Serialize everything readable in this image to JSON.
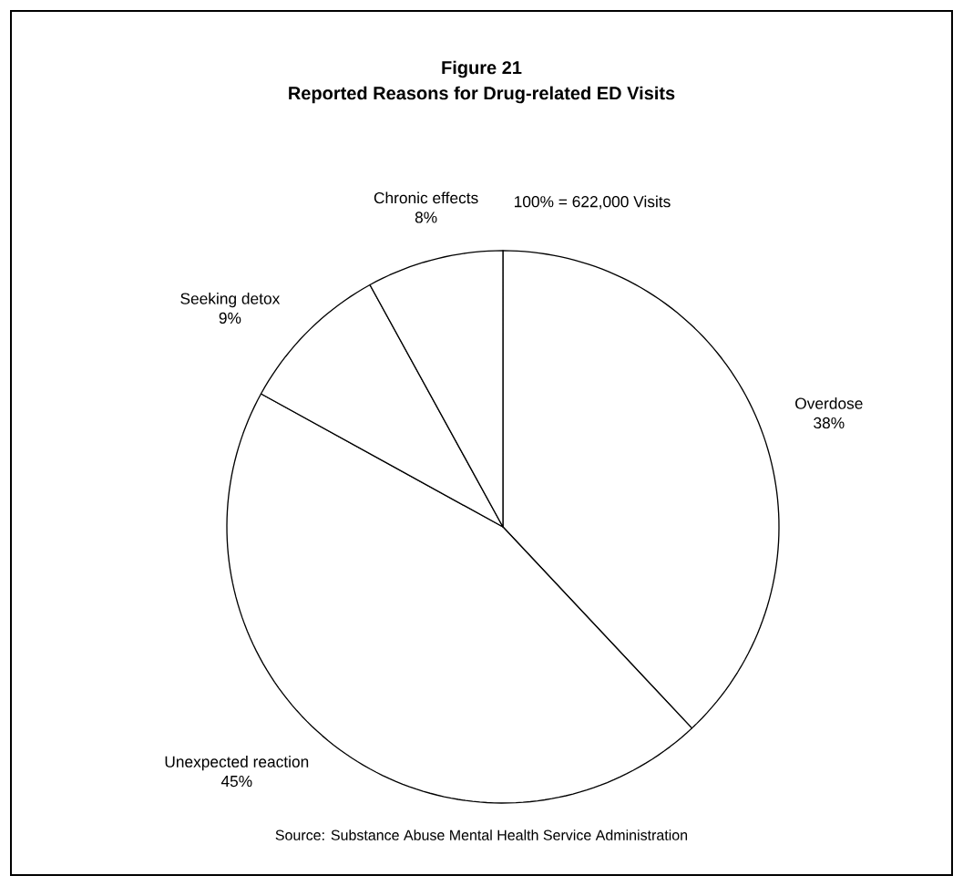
{
  "chart_data": {
    "type": "pie",
    "title": "Figure 21",
    "subtitle": "Reported Reasons for Drug-related ED Visits",
    "categories": [
      "Overdose",
      "Unexpected reaction",
      "Seeking detox",
      "Chronic effects"
    ],
    "values": [
      38,
      45,
      9,
      8
    ],
    "colors": [
      "#ffffff",
      "#ffffff",
      "#ffffff",
      "#ffffff"
    ],
    "value_labels": [
      "38%",
      "45%",
      "9%",
      "8%"
    ],
    "annotations": [
      "100%  = 622,000 Visits",
      "Source: Substance Abuse Mental Health Service Administration"
    ]
  }
}
